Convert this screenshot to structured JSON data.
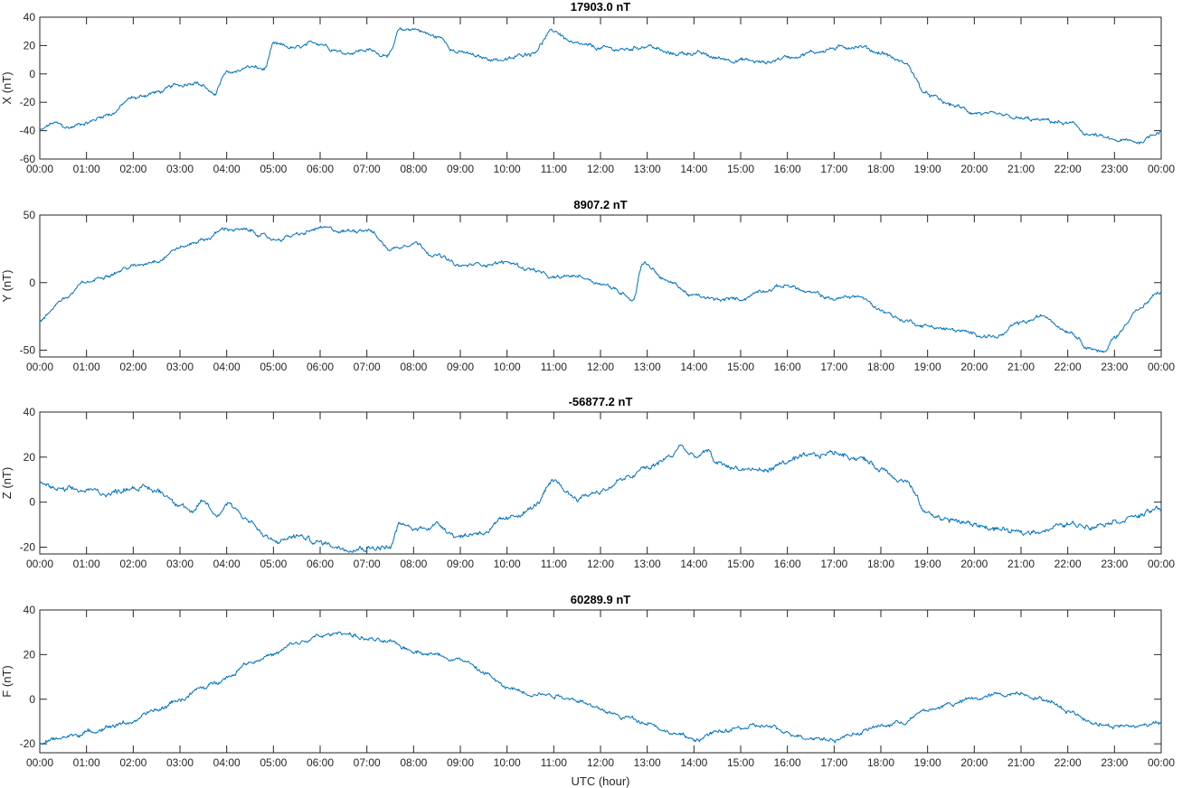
{
  "figure": {
    "line_color": "#0072bd",
    "axis_color": "#262626",
    "xlabel": "UTC (hour)",
    "x_tick_labels": [
      "00:00",
      "01:00",
      "02:00",
      "03:00",
      "04:00",
      "05:00",
      "06:00",
      "07:00",
      "08:00",
      "09:00",
      "10:00",
      "11:00",
      "12:00",
      "13:00",
      "14:00",
      "15:00",
      "16:00",
      "17:00",
      "18:00",
      "19:00",
      "20:00",
      "21:00",
      "22:00",
      "23:00",
      "00:00"
    ]
  },
  "chart_data": [
    {
      "type": "line",
      "title": "17903.0 nT",
      "ylabel": "X (nT)",
      "xlim": [
        0,
        24
      ],
      "ylim": [
        -60,
        40
      ],
      "yticks": [
        -60,
        -40,
        -20,
        0,
        20,
        40
      ],
      "noise": 1.2,
      "series": [
        {
          "name": "X",
          "x": [
            0,
            0.3,
            0.6,
            1,
            1.5,
            2,
            2.5,
            3,
            3.3,
            3.5,
            3.7,
            4,
            4.5,
            4.8,
            5,
            5.5,
            6,
            6.3,
            6.5,
            7,
            7.3,
            7.5,
            7.7,
            8,
            8.5,
            9,
            9.5,
            10,
            10.5,
            11,
            11.5,
            12,
            12.5,
            13,
            13.5,
            14,
            14.5,
            15,
            15.5,
            16,
            16.5,
            17,
            17.5,
            18,
            18.5,
            19,
            19.5,
            20,
            20.5,
            21,
            21.5,
            22,
            22.5,
            23,
            23.5,
            24
          ],
          "y": [
            -40,
            -35,
            -38,
            -34,
            -28,
            -17,
            -13,
            -8,
            -5,
            -8,
            -15,
            0,
            5,
            3,
            20,
            18,
            22,
            18,
            15,
            17,
            14,
            15,
            30,
            32,
            26,
            15,
            11,
            10,
            15,
            30,
            20,
            18,
            17,
            20,
            14,
            15,
            11,
            10,
            8,
            12,
            15,
            18,
            20,
            15,
            8,
            -15,
            -22,
            -27,
            -30,
            -32,
            -33,
            -35,
            -43,
            -47,
            -48,
            -40
          ]
        }
      ]
    },
    {
      "type": "line",
      "title": "8907.2 nT",
      "ylabel": "Y (nT)",
      "xlim": [
        0,
        24
      ],
      "ylim": [
        -55,
        50
      ],
      "yticks": [
        -50,
        0,
        50
      ],
      "noise": 1.2,
      "series": [
        {
          "name": "Y",
          "x": [
            0,
            0.5,
            1,
            1.5,
            2,
            2.5,
            3,
            3.5,
            4,
            4.5,
            5,
            5.5,
            6,
            6.5,
            7,
            7.5,
            8,
            8.5,
            9,
            9.5,
            10,
            10.5,
            11,
            11.5,
            12,
            12.5,
            12.7,
            12.9,
            13.5,
            14,
            14.5,
            15,
            15.5,
            16,
            16.5,
            17,
            17.5,
            18,
            18.5,
            19,
            19.5,
            20,
            20.5,
            21,
            21.5,
            22,
            22.5,
            22.8,
            23,
            23.5,
            24
          ],
          "y": [
            -28,
            -12,
            0,
            7,
            12,
            17,
            26,
            32,
            40,
            38,
            32,
            35,
            40,
            38,
            40,
            25,
            30,
            20,
            12,
            14,
            15,
            10,
            3,
            5,
            0,
            -8,
            -12,
            15,
            0,
            -10,
            -13,
            -12,
            -5,
            -2,
            -8,
            -12,
            -10,
            -20,
            -28,
            -32,
            -35,
            -38,
            -40,
            -30,
            -25,
            -35,
            -48,
            -52,
            -40,
            -20,
            -7
          ]
        }
      ]
    },
    {
      "type": "line",
      "title": "-56877.2 nT",
      "ylabel": "Z (nT)",
      "xlim": [
        0,
        24
      ],
      "ylim": [
        -23,
        40
      ],
      "yticks": [
        -20,
        0,
        20,
        40
      ],
      "noise": 1.0,
      "series": [
        {
          "name": "Z",
          "x": [
            0,
            0.5,
            1,
            1.5,
            2,
            2.5,
            3,
            3.3,
            3.5,
            3.8,
            4,
            4.5,
            4.8,
            5,
            5.5,
            6,
            6.5,
            7,
            7.5,
            7.7,
            8,
            8.5,
            9,
            9.5,
            10,
            10.5,
            11,
            11.5,
            12,
            12.5,
            13,
            13.5,
            13.7,
            14,
            14.3,
            14.5,
            15,
            15.5,
            16,
            16.5,
            17,
            17.5,
            18,
            18.5,
            19,
            19.5,
            20,
            20.5,
            21,
            21.5,
            22,
            22.5,
            23,
            23.5,
            24
          ],
          "y": [
            8,
            5,
            5,
            4,
            7,
            5,
            0,
            -5,
            0,
            -6,
            0,
            -8,
            -15,
            -18,
            -15,
            -18,
            -20,
            -20,
            -20,
            -10,
            -12,
            -10,
            -15,
            -13,
            -8,
            -3,
            8,
            2,
            5,
            10,
            15,
            20,
            25,
            20,
            22,
            17,
            15,
            14,
            18,
            20,
            22,
            20,
            15,
            10,
            -5,
            -8,
            -10,
            -12,
            -14,
            -12,
            -10,
            -10,
            -8,
            -6,
            -3
          ]
        }
      ]
    },
    {
      "type": "line",
      "title": "60289.9 nT",
      "ylabel": "F (nT)",
      "xlim": [
        0,
        24
      ],
      "ylim": [
        -24,
        40
      ],
      "yticks": [
        -20,
        0,
        20,
        40
      ],
      "noise": 0.8,
      "series": [
        {
          "name": "F",
          "x": [
            0,
            0.5,
            1,
            1.5,
            2,
            2.5,
            3,
            3.5,
            4,
            4.5,
            5,
            5.5,
            6,
            6.5,
            7,
            7.5,
            8,
            8.5,
            9,
            9.5,
            10,
            10.5,
            11,
            11.5,
            12,
            12.5,
            13,
            13.5,
            14,
            14.5,
            15,
            15.5,
            16,
            16.5,
            17,
            17.5,
            18,
            18.5,
            19,
            19.5,
            20,
            20.5,
            21,
            21.5,
            22,
            22.5,
            23,
            23.5,
            24
          ],
          "y": [
            -20,
            -17,
            -15,
            -12,
            -10,
            -5,
            0,
            5,
            10,
            17,
            20,
            25,
            28,
            30,
            27,
            25,
            22,
            20,
            18,
            12,
            5,
            3,
            2,
            0,
            -5,
            -8,
            -10,
            -15,
            -18,
            -15,
            -13,
            -12,
            -15,
            -17,
            -18,
            -15,
            -12,
            -10,
            -5,
            -2,
            0,
            2,
            3,
            0,
            -5,
            -10,
            -12,
            -12,
            -10
          ]
        }
      ]
    }
  ]
}
